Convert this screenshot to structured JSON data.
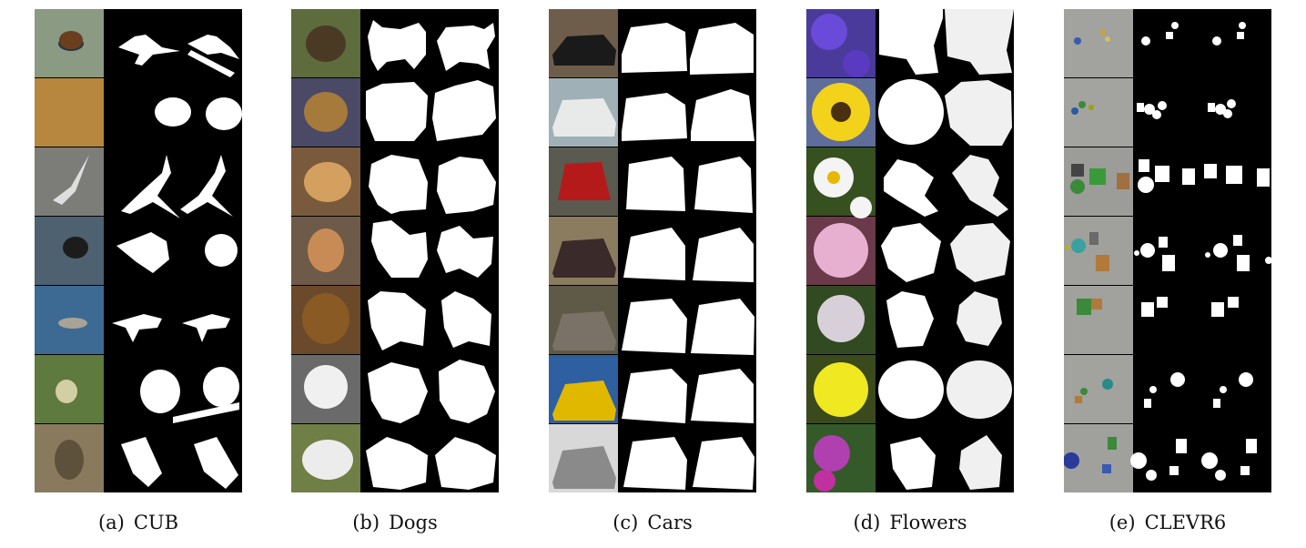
{
  "figure": {
    "captions": [
      {
        "label": "(a)",
        "name": "CUB"
      },
      {
        "label": "(b)",
        "name": "Dogs"
      },
      {
        "label": "(c)",
        "name": "Cars"
      },
      {
        "label": "(d)",
        "name": "Flowers"
      },
      {
        "label": "(e)",
        "name": "CLEVR6"
      }
    ],
    "panels": [
      {
        "id": "cub",
        "rows": 7,
        "columns": [
          "image",
          "ground-truth-mask",
          "predicted-mask"
        ],
        "subject": "birds",
        "photo_tones": [
          "#8a9a83",
          "#b7873f",
          "#7c7c78",
          "#4d6170",
          "#3d6a93",
          "#5e7a3e",
          "#8a7a5d"
        ]
      },
      {
        "id": "dogs",
        "rows": 7,
        "columns": [
          "image",
          "ground-truth-mask",
          "predicted-mask"
        ],
        "subject": "dogs",
        "photo_tones": [
          "#5d6b3d",
          "#4a4a66",
          "#7a5a3c",
          "#6e5a48",
          "#6a4a2a",
          "#6a6a6a",
          "#6f7f45"
        ]
      },
      {
        "id": "cars",
        "rows": 7,
        "columns": [
          "image",
          "ground-truth-mask",
          "predicted-mask"
        ],
        "subject": "cars",
        "photo_tones": [
          "#6f5d4b",
          "#9fb0b6",
          "#5a5a50",
          "#8b7c60",
          "#5f5a48",
          "#2e5fa0",
          "#d8d8d8"
        ]
      },
      {
        "id": "flowers",
        "rows": 7,
        "columns": [
          "image",
          "ground-truth-mask",
          "predicted-mask"
        ],
        "subject": "flowers",
        "photo_tones": [
          "#4a3a9a",
          "#5f6d9a",
          "#36501f",
          "#6a3a4a",
          "#324a22",
          "#3a4a1c",
          "#355a2a"
        ]
      },
      {
        "id": "clevr6",
        "rows": 7,
        "columns": [
          "image",
          "predicted-mask"
        ],
        "subject": "clevr-scenes",
        "photo_tones": [
          "#a2a29e",
          "#a3a39f",
          "#9c9c98",
          "#a0a09c",
          "#a1a19d",
          "#a2a29e",
          "#a0a09c"
        ]
      }
    ]
  }
}
